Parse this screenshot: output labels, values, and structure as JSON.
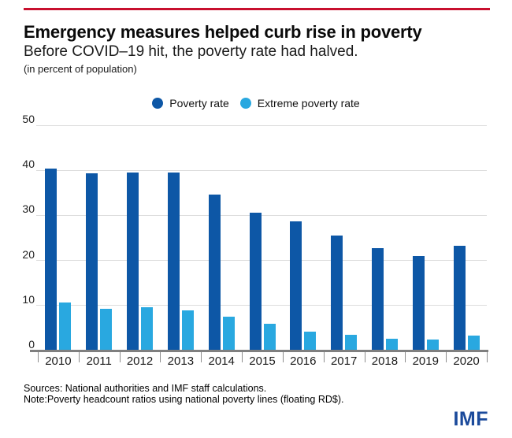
{
  "accent_red": "#c8102e",
  "header": {
    "title": "Emergency measures helped curb rise in poverty",
    "subtitle": "Before COVID–19 hit, the poverty rate had halved.",
    "unit_caption": "(in percent of population)"
  },
  "legend": [
    {
      "label": "Poverty rate",
      "color": "#0d57a6"
    },
    {
      "label": "Extreme poverty rate",
      "color": "#29a8e0"
    }
  ],
  "chart_data": {
    "type": "bar",
    "title": "Emergency measures helped curb rise in poverty",
    "subtitle": "Before COVID–19 hit, the poverty rate had halved.",
    "units": "percent of population",
    "categories": [
      "2010",
      "2011",
      "2012",
      "2013",
      "2014",
      "2015",
      "2016",
      "2017",
      "2018",
      "2019",
      "2020"
    ],
    "series": [
      {
        "name": "Poverty rate",
        "color": "#0d57a6",
        "values": [
          40.4,
          39.3,
          39.6,
          39.5,
          34.7,
          30.6,
          28.6,
          25.5,
          22.7,
          21.0,
          23.3
        ]
      },
      {
        "name": "Extreme poverty rate",
        "color": "#29a8e0",
        "values": [
          10.6,
          9.2,
          9.7,
          9.0,
          7.5,
          6.0,
          4.2,
          3.5,
          2.6,
          2.4,
          3.3
        ]
      }
    ],
    "ylim": [
      0,
      50
    ],
    "yticks": [
      0,
      10,
      20,
      30,
      40,
      50
    ],
    "grid": true,
    "legend_position": "top-center",
    "colors": {
      "gridline": "#dcdcdc",
      "axis": "#7f7f7f",
      "tick": "#8c8c8c"
    }
  },
  "footer": {
    "sources": "Sources: National authorities and IMF staff calculations.",
    "note": "Note:Poverty headcount ratios using national poverty lines (floating RD$).",
    "logo": "IMF",
    "logo_color": "#1b4a9b"
  }
}
